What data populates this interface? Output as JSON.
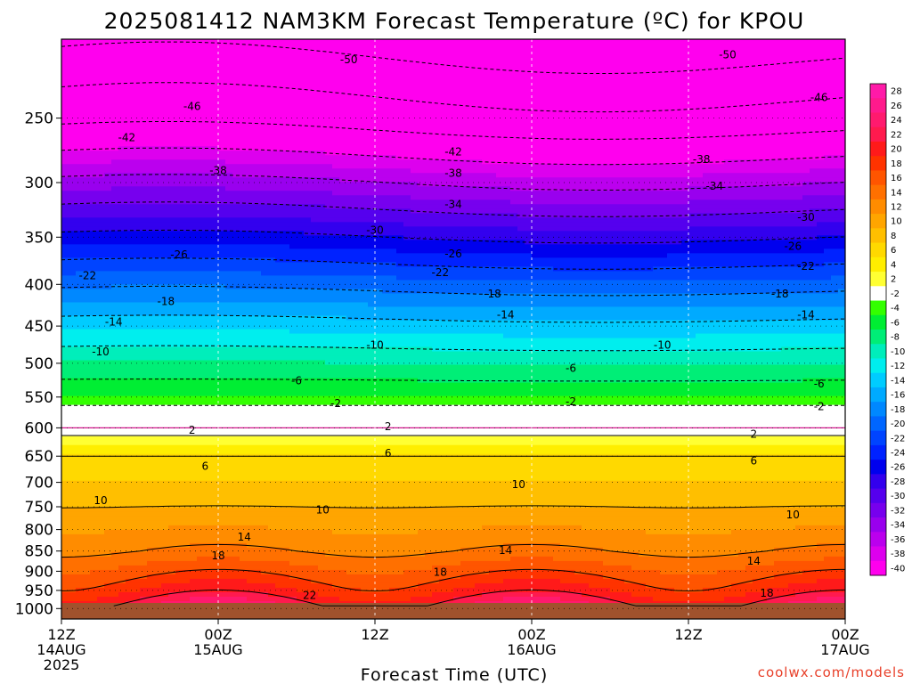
{
  "title": "2025081412 NAM3KM Forecast Temperature (ºC) for KPOU",
  "xlabel": "Forecast Time (UTC)",
  "credit": "coolwx.com/models",
  "chart_data": {
    "type": "heatmap",
    "title": "2025081412 NAM3KM Forecast Temperature (ºC) for KPOU",
    "xlabel": "Forecast Time (UTC)",
    "ylabel": "",
    "y_scale": "log-pressure, inverted",
    "y_ticks": [
      250,
      300,
      350,
      400,
      450,
      500,
      550,
      600,
      650,
      700,
      750,
      800,
      850,
      900,
      950,
      1000
    ],
    "ylim": [
      1030,
      200
    ],
    "x_ticks": [
      {
        "hour": 0,
        "line1": "12Z",
        "line2": "14AUG",
        "line3": "2025"
      },
      {
        "hour": 12,
        "line1": "00Z",
        "line2": "15AUG",
        "line3": ""
      },
      {
        "hour": 24,
        "line1": "12Z",
        "line2": "",
        "line3": ""
      },
      {
        "hour": 36,
        "line1": "00Z",
        "line2": "16AUG",
        "line3": ""
      },
      {
        "hour": 48,
        "line1": "12Z",
        "line2": "",
        "line3": ""
      },
      {
        "hour": 60,
        "line1": "00Z",
        "line2": "17AUG",
        "line3": ""
      }
    ],
    "xlim": [
      0,
      60
    ],
    "grid": true,
    "colorbar_levels": [
      28,
      26,
      24,
      22,
      20,
      18,
      16,
      14,
      12,
      10,
      8,
      6,
      4,
      2,
      -2,
      -4,
      -6,
      -8,
      -10,
      -12,
      -14,
      -16,
      -18,
      -20,
      -22,
      -24,
      -26,
      -28,
      -30,
      -32,
      -34,
      -36,
      -38,
      -40
    ],
    "colorbar_colors": [
      "#ff1aa8",
      "#ff1a8c",
      "#ff1a6e",
      "#ff1a4e",
      "#ff1a1a",
      "#ff3300",
      "#ff5500",
      "#ff7000",
      "#ff8c00",
      "#ffa500",
      "#ffbf00",
      "#ffd900",
      "#ffee00",
      "#ffff33",
      "#ffffff",
      "#33ff00",
      "#00ee33",
      "#00ee77",
      "#00eebb",
      "#00eeee",
      "#00ccff",
      "#00aaff",
      "#0088ff",
      "#0066ff",
      "#0044ff",
      "#0022ff",
      "#0000ee",
      "#3300ee",
      "#5500ee",
      "#7700ee",
      "#9900ee",
      "#bb00ee",
      "#dd00ee",
      "#ff00ee"
    ],
    "temperature_profile": [
      {
        "pressure": 1000,
        "temp": 24
      },
      {
        "pressure": 950,
        "temp": 20
      },
      {
        "pressure": 900,
        "temp": 17
      },
      {
        "pressure": 850,
        "temp": 14
      },
      {
        "pressure": 800,
        "temp": 12
      },
      {
        "pressure": 750,
        "temp": 10
      },
      {
        "pressure": 700,
        "temp": 8
      },
      {
        "pressure": 650,
        "temp": 6
      },
      {
        "pressure": 620,
        "temp": 3
      },
      {
        "pressure": 600,
        "temp": 0
      },
      {
        "pressure": 570,
        "temp": -1
      },
      {
        "pressure": 550,
        "temp": -4
      },
      {
        "pressure": 500,
        "temp": -8
      },
      {
        "pressure": 450,
        "temp": -13
      },
      {
        "pressure": 400,
        "temp": -19
      },
      {
        "pressure": 350,
        "temp": -26
      },
      {
        "pressure": 300,
        "temp": -34
      },
      {
        "pressure": 250,
        "temp": -44
      },
      {
        "pressure": 200,
        "temp": -52
      }
    ],
    "contour_labels": [
      {
        "text": "-50",
        "hour": 22,
        "pressure": 212
      },
      {
        "text": "-50",
        "hour": 51,
        "pressure": 209
      },
      {
        "text": "-46",
        "hour": 10,
        "pressure": 242
      },
      {
        "text": "-46",
        "hour": 58,
        "pressure": 236
      },
      {
        "text": "-42",
        "hour": 5,
        "pressure": 264
      },
      {
        "text": "-42",
        "hour": 30,
        "pressure": 275
      },
      {
        "text": "-38",
        "hour": 12,
        "pressure": 290
      },
      {
        "text": "-38",
        "hour": 30,
        "pressure": 292
      },
      {
        "text": "-38",
        "hour": 49,
        "pressure": 281
      },
      {
        "text": "-34",
        "hour": 30,
        "pressure": 319
      },
      {
        "text": "-34",
        "hour": 50,
        "pressure": 303
      },
      {
        "text": "-30",
        "hour": 24,
        "pressure": 343
      },
      {
        "text": "-30",
        "hour": 57,
        "pressure": 331
      },
      {
        "text": "-26",
        "hour": 9,
        "pressure": 368
      },
      {
        "text": "-26",
        "hour": 30,
        "pressure": 367
      },
      {
        "text": "-26",
        "hour": 56,
        "pressure": 359
      },
      {
        "text": "-22",
        "hour": 2,
        "pressure": 390
      },
      {
        "text": "-22",
        "hour": 29,
        "pressure": 387
      },
      {
        "text": "-22",
        "hour": 57,
        "pressure": 380
      },
      {
        "text": "-18",
        "hour": 8,
        "pressure": 420
      },
      {
        "text": "-18",
        "hour": 33,
        "pressure": 411
      },
      {
        "text": "-18",
        "hour": 55,
        "pressure": 411
      },
      {
        "text": "-14",
        "hour": 4,
        "pressure": 445
      },
      {
        "text": "-14",
        "hour": 34,
        "pressure": 436
      },
      {
        "text": "-14",
        "hour": 57,
        "pressure": 436
      },
      {
        "text": "-10",
        "hour": 3,
        "pressure": 484
      },
      {
        "text": "-10",
        "hour": 24,
        "pressure": 475
      },
      {
        "text": "-10",
        "hour": 46,
        "pressure": 475
      },
      {
        "text": "-6",
        "hour": 18,
        "pressure": 525
      },
      {
        "text": "-6",
        "hour": 39,
        "pressure": 507
      },
      {
        "text": "-6",
        "hour": 58,
        "pressure": 530
      },
      {
        "text": "-2",
        "hour": 21,
        "pressure": 560
      },
      {
        "text": "-2",
        "hour": 39,
        "pressure": 557
      },
      {
        "text": "-2",
        "hour": 58,
        "pressure": 565
      },
      {
        "text": "2",
        "hour": 10,
        "pressure": 604
      },
      {
        "text": "2",
        "hour": 25,
        "pressure": 598
      },
      {
        "text": "2",
        "hour": 53,
        "pressure": 611
      },
      {
        "text": "6",
        "hour": 11,
        "pressure": 669
      },
      {
        "text": "6",
        "hour": 25,
        "pressure": 645
      },
      {
        "text": "6",
        "hour": 53,
        "pressure": 659
      },
      {
        "text": "10",
        "hour": 3,
        "pressure": 737
      },
      {
        "text": "10",
        "hour": 20,
        "pressure": 757
      },
      {
        "text": "10",
        "hour": 35,
        "pressure": 704
      },
      {
        "text": "10",
        "hour": 56,
        "pressure": 767
      },
      {
        "text": "14",
        "hour": 14,
        "pressure": 817
      },
      {
        "text": "14",
        "hour": 34,
        "pressure": 848
      },
      {
        "text": "14",
        "hour": 53,
        "pressure": 874
      },
      {
        "text": "18",
        "hour": 12,
        "pressure": 861
      },
      {
        "text": "18",
        "hour": 29,
        "pressure": 903
      },
      {
        "text": "18",
        "hour": 54,
        "pressure": 957
      },
      {
        "text": "22",
        "hour": 19,
        "pressure": 963
      }
    ]
  }
}
